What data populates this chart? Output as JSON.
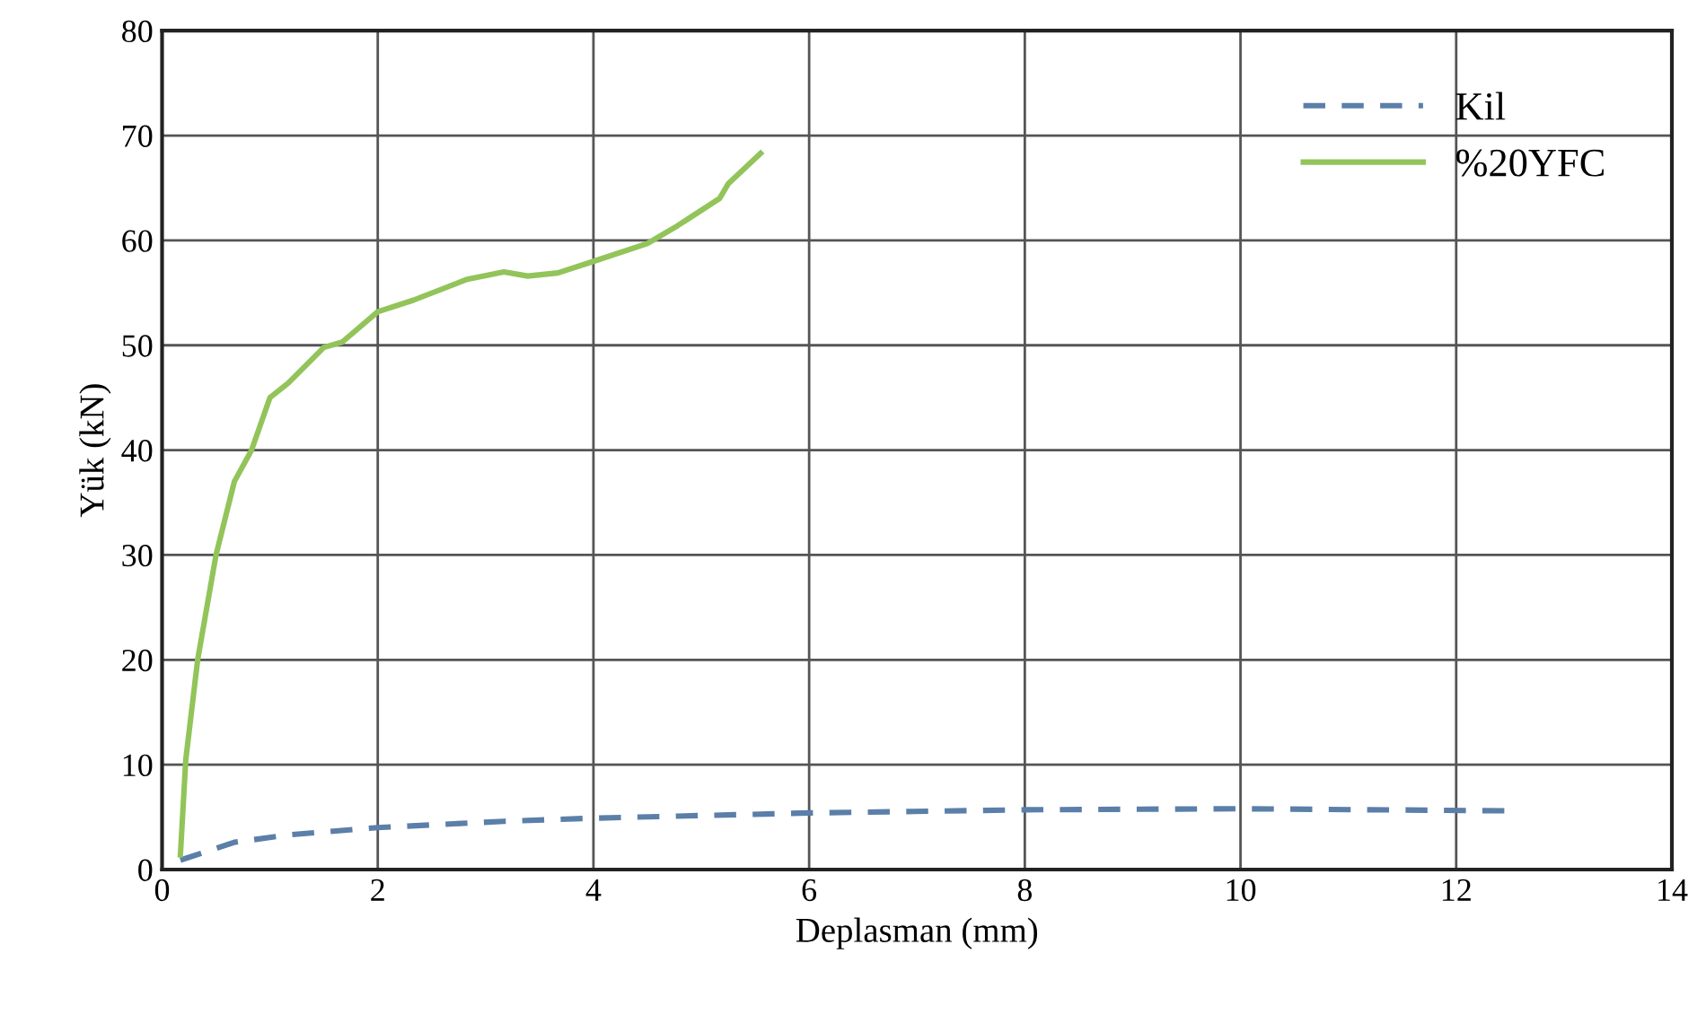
{
  "chart_data": {
    "type": "line",
    "xlabel": "Deplasman (mm)",
    "ylabel": "Yük (kN)",
    "xlim": [
      0,
      14
    ],
    "xticks": [
      0,
      2,
      4,
      6,
      8,
      10,
      12,
      14
    ],
    "ylim": [
      0,
      80
    ],
    "yticks": [
      0,
      10,
      20,
      30,
      40,
      50,
      60,
      70,
      80
    ],
    "grid": true,
    "legend": "top right",
    "series": [
      {
        "name": "Kil",
        "color": "#5b7fa8",
        "line_style": "dashed",
        "x": [
          0.17,
          0.67,
          1.17,
          2.0,
          3.17,
          4.0,
          6.0,
          8.0,
          10.0,
          12.5
        ],
        "values": [
          0.9,
          2.6,
          3.3,
          4.0,
          4.6,
          4.9,
          5.4,
          5.7,
          5.8,
          5.6
        ]
      },
      {
        "name": "%20YFC",
        "color": "#92c45a",
        "line_style": "solid",
        "x": [
          0.17,
          0.22,
          0.33,
          0.5,
          0.67,
          0.83,
          1.0,
          1.17,
          1.5,
          1.67,
          2.0,
          2.33,
          2.83,
          3.17,
          3.39,
          3.67,
          4.0,
          4.5,
          4.78,
          5.17,
          5.25,
          5.55
        ],
        "values": [
          1.4,
          10.5,
          20,
          30,
          37,
          40,
          45,
          46.4,
          49.8,
          50.3,
          53.2,
          54.3,
          56.3,
          57,
          56.6,
          56.9,
          58,
          59.7,
          61.4,
          64,
          65.4,
          68.3
        ]
      }
    ]
  }
}
